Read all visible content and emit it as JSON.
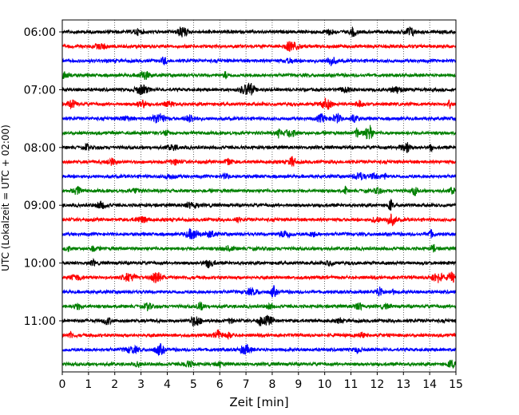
{
  "chart_data": {
    "type": "line",
    "title": "",
    "xlabel": "Zeit  [min]",
    "ylabel": "UTC (Lokalzeit = UTC + 02:00)",
    "xlim": [
      0,
      15
    ],
    "x_ticks": [
      "0",
      "1",
      "2",
      "3",
      "4",
      "5",
      "6",
      "7",
      "8",
      "9",
      "10",
      "11",
      "12",
      "13",
      "14",
      "15"
    ],
    "y_ticks": [
      "06:00",
      "07:00",
      "08:00",
      "09:00",
      "10:00",
      "11:00"
    ],
    "grid": "vertical dotted at each minute",
    "row_interval_minutes": 15,
    "first_row": "06:00",
    "row_colors": [
      "#000000",
      "#ff0000",
      "#0000ff",
      "#008000"
    ],
    "series": [
      {
        "start": "06:00",
        "color": "#000000"
      },
      {
        "start": "06:15",
        "color": "#ff0000"
      },
      {
        "start": "06:30",
        "color": "#0000ff"
      },
      {
        "start": "06:45",
        "color": "#008000"
      },
      {
        "start": "07:00",
        "color": "#000000"
      },
      {
        "start": "07:15",
        "color": "#ff0000"
      },
      {
        "start": "07:30",
        "color": "#0000ff"
      },
      {
        "start": "07:45",
        "color": "#008000"
      },
      {
        "start": "08:00",
        "color": "#000000"
      },
      {
        "start": "08:15",
        "color": "#ff0000"
      },
      {
        "start": "08:30",
        "color": "#0000ff"
      },
      {
        "start": "08:45",
        "color": "#008000"
      },
      {
        "start": "09:00",
        "color": "#000000"
      },
      {
        "start": "09:15",
        "color": "#ff0000"
      },
      {
        "start": "09:30",
        "color": "#0000ff"
      },
      {
        "start": "09:45",
        "color": "#008000"
      },
      {
        "start": "10:00",
        "color": "#000000"
      },
      {
        "start": "10:15",
        "color": "#ff0000"
      },
      {
        "start": "10:30",
        "color": "#0000ff"
      },
      {
        "start": "10:45",
        "color": "#008000"
      },
      {
        "start": "11:00",
        "color": "#000000"
      },
      {
        "start": "11:15",
        "color": "#ff0000"
      },
      {
        "start": "11:30",
        "color": "#0000ff"
      },
      {
        "start": "11:45",
        "color": "#008000"
      }
    ]
  }
}
